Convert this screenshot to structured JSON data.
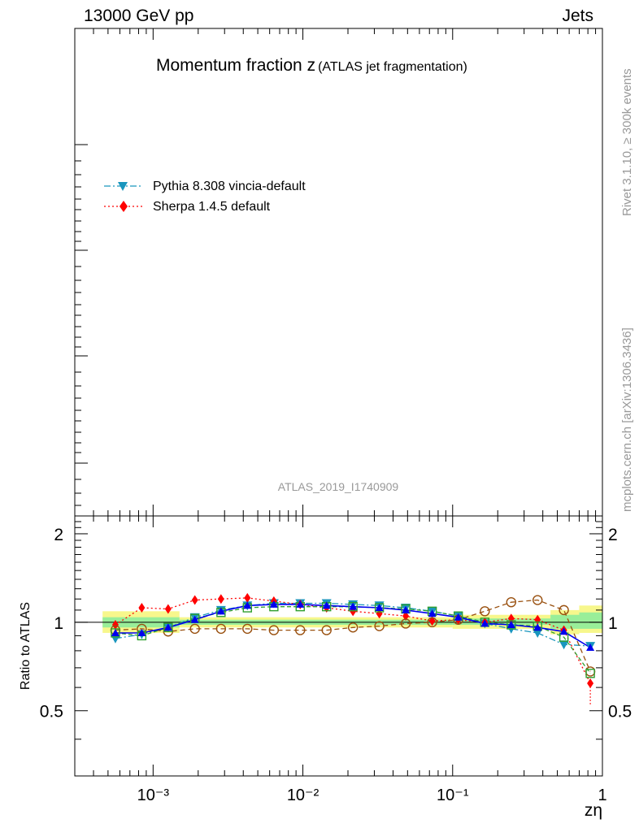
{
  "header": {
    "energy_label": "13000 GeV pp",
    "category_label": "Jets"
  },
  "side_labels": {
    "rivet": "Rivet 3.1.10, ≥ 300k events",
    "source": "mcplots.cern.ch [arXiv:1306.3436]"
  },
  "colors": {
    "pythia": "#1996be",
    "sherpa": "#ff0000",
    "brown": "#99500f",
    "green": "#2f9f2f",
    "blue": "#0000ee",
    "band_outer": "#f7f78c",
    "band_inner": "#99ee99"
  },
  "chart_data": {
    "type": "line",
    "title": "Momentum fraction z",
    "title_suffix": "(ATLAS jet fragmentation)",
    "analysis_id": "ATLAS_2019_I1740909",
    "xlabel": "zη",
    "ylabel": "Ratio to ATLAS",
    "xscale": "log",
    "xlim": [
      0.0003,
      1.0
    ],
    "ylim": [
      0.3,
      2.3
    ],
    "x_tick_labels": [
      "10⁻³",
      "10⁻²",
      "10⁻¹",
      "1"
    ],
    "y_tick_labels": [
      "0.5",
      "1",
      "2"
    ],
    "reference_line": 1.0,
    "legend": [
      {
        "name": "Pythia 8.308 vincia-default",
        "style": "dash-dot",
        "marker": "triangle-down",
        "color": "#1996be"
      },
      {
        "name": "Sherpa 1.4.5 default",
        "style": "dotted",
        "marker": "diamond",
        "color": "#ff0000"
      }
    ],
    "x": [
      0.00056,
      0.00084,
      0.00126,
      0.0019,
      0.00284,
      0.00426,
      0.0064,
      0.0096,
      0.0144,
      0.0216,
      0.0324,
      0.0486,
      0.073,
      0.109,
      0.164,
      0.246,
      0.369,
      0.553,
      0.83
    ],
    "band_outer": [
      {
        "x": [
          0.00046,
          0.0015
        ],
        "lo": 0.92,
        "hi": 1.09
      },
      {
        "x": [
          0.0015,
          0.1
        ],
        "lo": 0.96,
        "hi": 1.04
      },
      {
        "x": [
          0.1,
          0.45
        ],
        "lo": 0.95,
        "hi": 1.06
      },
      {
        "x": [
          0.45,
          0.7
        ],
        "lo": 0.91,
        "hi": 1.1
      },
      {
        "x": [
          0.7,
          1.0
        ],
        "lo": 0.92,
        "hi": 1.14
      }
    ],
    "band_inner": [
      {
        "x": [
          0.00046,
          0.0015
        ],
        "lo": 0.96,
        "hi": 1.04
      },
      {
        "x": [
          0.0015,
          0.1
        ],
        "lo": 0.98,
        "hi": 1.02
      },
      {
        "x": [
          0.1,
          0.45
        ],
        "lo": 0.98,
        "hi": 1.03
      },
      {
        "x": [
          0.45,
          0.7
        ],
        "lo": 0.95,
        "hi": 1.06
      },
      {
        "x": [
          0.7,
          1.0
        ],
        "lo": 0.95,
        "hi": 1.08
      }
    ],
    "series": [
      {
        "name": "Pythia 8.308 vincia-default",
        "color": "#1996be",
        "dash": "8,3,2,3",
        "marker": "tri-down",
        "values": [
          0.88,
          0.91,
          0.96,
          1.04,
          1.1,
          1.14,
          1.16,
          1.16,
          1.16,
          1.15,
          1.14,
          1.12,
          1.09,
          1.05,
          0.99,
          0.95,
          0.92,
          0.84,
          0.83
        ]
      },
      {
        "name": "Sherpa 1.4.5 default",
        "color": "#ff0000",
        "dash": "2,3",
        "marker": "diamond",
        "values": [
          0.98,
          1.12,
          1.11,
          1.19,
          1.2,
          1.21,
          1.18,
          1.15,
          1.12,
          1.09,
          1.07,
          1.05,
          1.01,
          1.02,
          1.0,
          1.03,
          1.02,
          0.94,
          0.62
        ],
        "error_lo": [
          0,
          0,
          0,
          0,
          0,
          0,
          0,
          0,
          0,
          0,
          0,
          0,
          0,
          0,
          0,
          0,
          0,
          0,
          0.1
        ]
      },
      {
        "name": "",
        "color": "#99500f",
        "dash": "6,4",
        "marker": "circle-open",
        "values": [
          0.94,
          0.95,
          0.93,
          0.95,
          0.95,
          0.95,
          0.94,
          0.94,
          0.94,
          0.96,
          0.97,
          0.99,
          1.0,
          1.02,
          1.09,
          1.17,
          1.19,
          1.1,
          0.68
        ]
      },
      {
        "name": "",
        "color": "#2f9f2f",
        "dash": "5,3",
        "marker": "square-open",
        "values": [
          0.92,
          0.9,
          0.96,
          1.03,
          1.08,
          1.12,
          1.13,
          1.13,
          1.13,
          1.13,
          1.12,
          1.11,
          1.09,
          1.05,
          1.0,
          0.98,
          0.97,
          0.89,
          0.67
        ]
      },
      {
        "name": "",
        "color": "#0000ee",
        "dash": "",
        "marker": "triangle-up",
        "values": [
          0.92,
          0.92,
          0.96,
          1.02,
          1.09,
          1.14,
          1.15,
          1.15,
          1.14,
          1.13,
          1.12,
          1.1,
          1.07,
          1.04,
          0.99,
          0.98,
          0.96,
          0.93,
          0.82
        ]
      }
    ]
  }
}
